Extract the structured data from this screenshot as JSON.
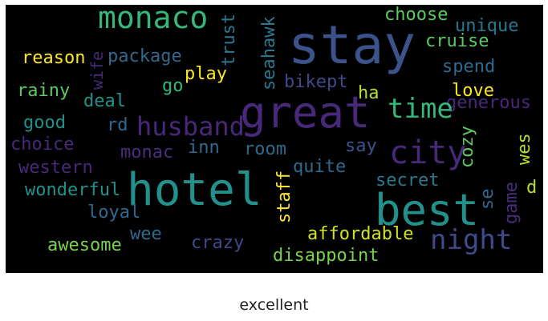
{
  "caption": "excellent",
  "background_color": "#000000",
  "words": [
    {
      "text": "stay",
      "color": "#3b528b"
    },
    {
      "text": "monaco",
      "color": "#35b779"
    },
    {
      "text": "trust",
      "color": "#2a788e"
    },
    {
      "text": "seahawk",
      "color": "#2a788e"
    },
    {
      "text": "choose",
      "color": "#5ec962"
    },
    {
      "text": "unique",
      "color": "#2a788e"
    },
    {
      "text": "cruise",
      "color": "#5ec962"
    },
    {
      "text": "reason",
      "color": "#fde725"
    },
    {
      "text": "package",
      "color": "#31688e"
    },
    {
      "text": "wife",
      "color": "#482878"
    },
    {
      "text": "spend",
      "color": "#31688e"
    },
    {
      "text": "play",
      "color": "#fde725"
    },
    {
      "text": "rainy",
      "color": "#5ec962"
    },
    {
      "text": "go",
      "color": "#35b779"
    },
    {
      "text": "bikept",
      "color": "#3e4a89"
    },
    {
      "text": "love",
      "color": "#fde725"
    },
    {
      "text": "ha",
      "color": "#b5de2b"
    },
    {
      "text": "deal",
      "color": "#21918c"
    },
    {
      "text": "generous",
      "color": "#482878"
    },
    {
      "text": "great",
      "color": "#482878"
    },
    {
      "text": "time",
      "color": "#35b779"
    },
    {
      "text": "good",
      "color": "#21918c"
    },
    {
      "text": "rd",
      "color": "#31688e"
    },
    {
      "text": "husband",
      "color": "#482878"
    },
    {
      "text": "cozy",
      "color": "#5ec962"
    },
    {
      "text": "choice",
      "color": "#482878"
    },
    {
      "text": "monac",
      "color": "#472d7b"
    },
    {
      "text": "inn",
      "color": "#31688e"
    },
    {
      "text": "room",
      "color": "#31688e"
    },
    {
      "text": "say",
      "color": "#3b528b"
    },
    {
      "text": "city",
      "color": "#482878"
    },
    {
      "text": "wes",
      "color": "#b5de2b"
    },
    {
      "text": "western",
      "color": "#482878"
    },
    {
      "text": "quite",
      "color": "#31688e"
    },
    {
      "text": "wonderful",
      "color": "#21918c"
    },
    {
      "text": "hotel",
      "color": "#21918c"
    },
    {
      "text": "staff",
      "color": "#fde725"
    },
    {
      "text": "secret",
      "color": "#2a788e"
    },
    {
      "text": "se",
      "color": "#31688e"
    },
    {
      "text": "game",
      "color": "#472d7b"
    },
    {
      "text": "d",
      "color": "#b5de2b"
    },
    {
      "text": "loyal",
      "color": "#31688e"
    },
    {
      "text": "best",
      "color": "#21918c"
    },
    {
      "text": "affordable",
      "color": "#d2e21b"
    },
    {
      "text": "awesome",
      "color": "#7ad151"
    },
    {
      "text": "wee",
      "color": "#31688e"
    },
    {
      "text": "crazy",
      "color": "#3e4a89"
    },
    {
      "text": "night",
      "color": "#3e4a89"
    },
    {
      "text": "disappoint",
      "color": "#7ad151"
    }
  ]
}
